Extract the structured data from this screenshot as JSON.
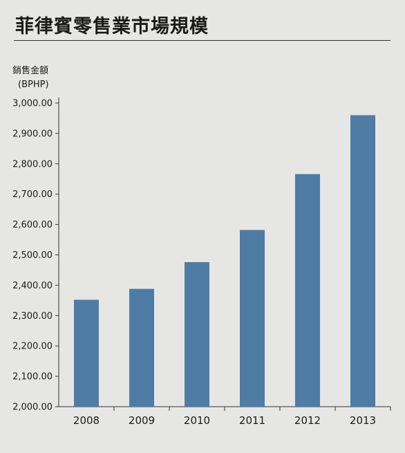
{
  "chart_data": {
    "type": "bar",
    "title": "菲律賓零售業市場規模",
    "ylabel": "銷售金額",
    "yunit": "(BPHP)",
    "xlabel": "",
    "categories": [
      "2008",
      "2009",
      "2010",
      "2011",
      "2012",
      "2013"
    ],
    "values": [
      2352,
      2388,
      2476,
      2582,
      2766,
      2960
    ],
    "ylim": [
      2000,
      3000
    ],
    "yticks": [
      "2,000.00",
      "2,100.00",
      "2,200.00",
      "2,300.00",
      "2,400.00",
      "2,500.00",
      "2,600.00",
      "2,700.00",
      "2,800.00",
      "2,900.00",
      "3,000.00"
    ],
    "grid": false,
    "bar_color": "#4f7ca5"
  }
}
